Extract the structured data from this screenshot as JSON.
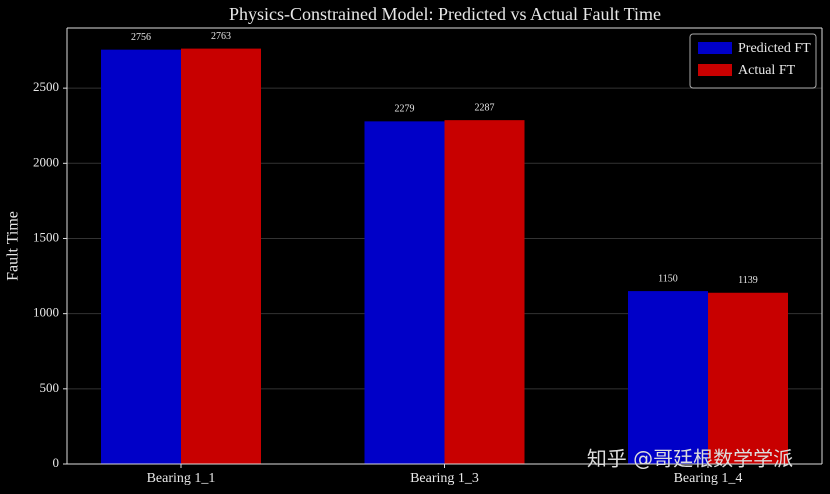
{
  "chart_data": {
    "type": "bar",
    "title": "Physics-Constrained Model: Predicted vs Actual Fault Time",
    "y_label": "Fault Time",
    "categories": [
      "Bearing 1_1",
      "Bearing 1_3",
      "Bearing 1_4"
    ],
    "series": [
      {
        "name": "Predicted FT",
        "color": "#0000c8",
        "values": [
          2756,
          2279,
          1150
        ]
      },
      {
        "name": "Actual FT",
        "color": "#c80000",
        "values": [
          2763,
          2287,
          1139
        ]
      }
    ],
    "ylim": [
      0,
      2900
    ],
    "yticks": [
      0,
      500,
      1000,
      1500,
      2000,
      2500
    ],
    "grid": true,
    "legend": "upper right",
    "watermark": "知乎 @哥廷根数学学派"
  }
}
